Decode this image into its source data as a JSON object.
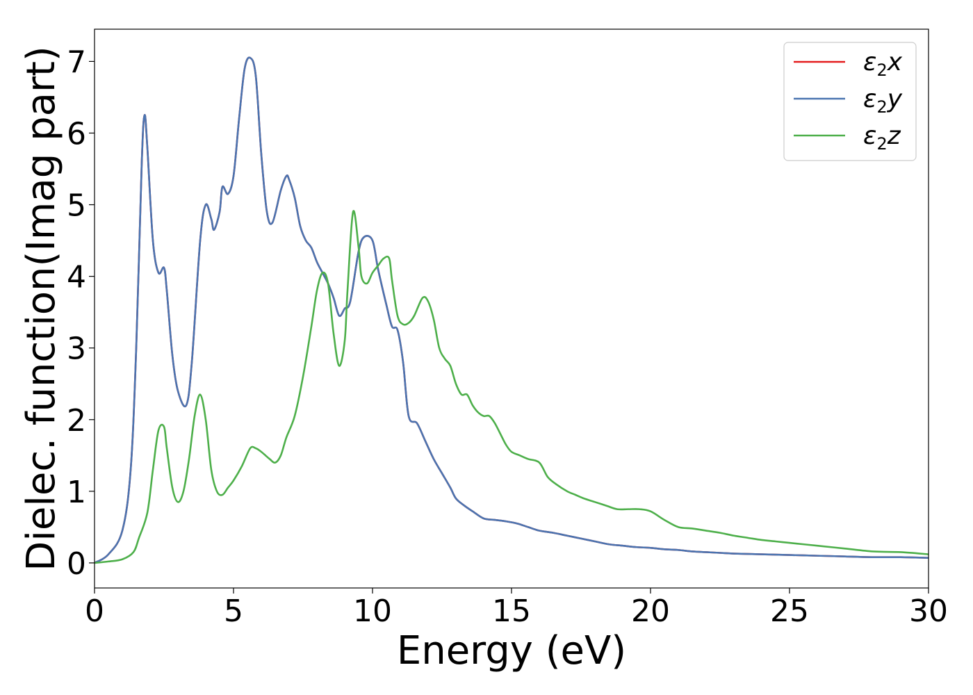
{
  "chart_data": {
    "type": "line",
    "xlabel": "Energy (eV)",
    "ylabel": "Dielec. function(Imag part)",
    "xlim": [
      0,
      30
    ],
    "ylim": [
      -0.35,
      7.45
    ],
    "xticks": [
      "0",
      "5",
      "10",
      "15",
      "20",
      "25",
      "30"
    ],
    "yticks": [
      "0",
      "1",
      "2",
      "3",
      "4",
      "5",
      "6",
      "7"
    ],
    "legend_position": "top-right",
    "grid": false,
    "series": [
      {
        "name": "ε₂x",
        "legend_base": "ε",
        "legend_sub": "2",
        "legend_tail": "x",
        "color": "#e41a1c",
        "x": [
          0,
          0.5,
          1.0,
          1.3,
          1.5,
          1.7,
          1.8,
          1.9,
          2.1,
          2.3,
          2.5,
          2.6,
          2.8,
          3.0,
          3.3,
          3.5,
          3.8,
          4.0,
          4.2,
          4.3,
          4.5,
          4.6,
          4.8,
          5.0,
          5.2,
          5.4,
          5.6,
          5.8,
          6.0,
          6.2,
          6.4,
          6.7,
          6.9,
          7.0,
          7.2,
          7.4,
          7.6,
          7.8,
          8.0,
          8.2,
          8.4,
          8.6,
          8.8,
          9.0,
          9.2,
          9.5,
          9.7,
          10.0,
          10.2,
          10.5,
          10.7,
          10.9,
          11.1,
          11.3,
          11.6,
          11.9,
          12.2,
          12.5,
          12.8,
          13.0,
          13.3,
          13.6,
          14.0,
          14.4,
          14.8,
          15.2,
          15.6,
          16.0,
          16.5,
          17.0,
          17.5,
          18.0,
          18.5,
          19.0,
          19.5,
          20.0,
          20.5,
          21.0,
          21.5,
          22.0,
          22.5,
          23.0,
          24.0,
          25.0,
          26.0,
          27.0,
          28.0,
          29.0,
          30.0
        ],
        "y": [
          0.0,
          0.12,
          0.45,
          1.3,
          3.0,
          5.6,
          6.25,
          5.8,
          4.5,
          4.05,
          4.12,
          3.8,
          2.9,
          2.4,
          2.2,
          2.8,
          4.5,
          5.0,
          4.8,
          4.65,
          4.9,
          5.25,
          5.15,
          5.4,
          6.2,
          6.9,
          7.05,
          6.8,
          5.7,
          4.9,
          4.75,
          5.2,
          5.4,
          5.35,
          5.1,
          4.7,
          4.5,
          4.4,
          4.2,
          4.05,
          3.9,
          3.7,
          3.45,
          3.55,
          3.65,
          4.35,
          4.55,
          4.5,
          4.1,
          3.6,
          3.3,
          3.25,
          2.8,
          2.05,
          1.95,
          1.7,
          1.45,
          1.25,
          1.05,
          0.9,
          0.8,
          0.72,
          0.62,
          0.6,
          0.58,
          0.55,
          0.5,
          0.45,
          0.42,
          0.38,
          0.34,
          0.3,
          0.26,
          0.24,
          0.22,
          0.21,
          0.19,
          0.18,
          0.16,
          0.15,
          0.14,
          0.13,
          0.12,
          0.11,
          0.1,
          0.09,
          0.08,
          0.08,
          0.07
        ]
      },
      {
        "name": "ε₂y",
        "legend_base": "ε",
        "legend_sub": "2",
        "legend_tail": "y",
        "color": "#4a74b0",
        "x": [
          0,
          0.5,
          1.0,
          1.3,
          1.5,
          1.7,
          1.8,
          1.9,
          2.1,
          2.3,
          2.5,
          2.6,
          2.8,
          3.0,
          3.3,
          3.5,
          3.8,
          4.0,
          4.2,
          4.3,
          4.5,
          4.6,
          4.8,
          5.0,
          5.2,
          5.4,
          5.6,
          5.8,
          6.0,
          6.2,
          6.4,
          6.7,
          6.9,
          7.0,
          7.2,
          7.4,
          7.6,
          7.8,
          8.0,
          8.2,
          8.4,
          8.6,
          8.8,
          9.0,
          9.2,
          9.5,
          9.7,
          10.0,
          10.2,
          10.5,
          10.7,
          10.9,
          11.1,
          11.3,
          11.6,
          11.9,
          12.2,
          12.5,
          12.8,
          13.0,
          13.3,
          13.6,
          14.0,
          14.4,
          14.8,
          15.2,
          15.6,
          16.0,
          16.5,
          17.0,
          17.5,
          18.0,
          18.5,
          19.0,
          19.5,
          20.0,
          20.5,
          21.0,
          21.5,
          22.0,
          22.5,
          23.0,
          24.0,
          25.0,
          26.0,
          27.0,
          28.0,
          29.0,
          30.0
        ],
        "y": [
          0.0,
          0.12,
          0.45,
          1.3,
          3.0,
          5.6,
          6.25,
          5.8,
          4.5,
          4.05,
          4.12,
          3.8,
          2.9,
          2.4,
          2.2,
          2.8,
          4.5,
          5.0,
          4.8,
          4.65,
          4.9,
          5.25,
          5.15,
          5.4,
          6.2,
          6.9,
          7.05,
          6.8,
          5.7,
          4.9,
          4.75,
          5.2,
          5.4,
          5.35,
          5.1,
          4.7,
          4.5,
          4.4,
          4.2,
          4.05,
          3.9,
          3.7,
          3.45,
          3.55,
          3.65,
          4.35,
          4.55,
          4.5,
          4.1,
          3.6,
          3.3,
          3.25,
          2.8,
          2.05,
          1.95,
          1.7,
          1.45,
          1.25,
          1.05,
          0.9,
          0.8,
          0.72,
          0.62,
          0.6,
          0.58,
          0.55,
          0.5,
          0.45,
          0.42,
          0.38,
          0.34,
          0.3,
          0.26,
          0.24,
          0.22,
          0.21,
          0.19,
          0.18,
          0.16,
          0.15,
          0.14,
          0.13,
          0.12,
          0.11,
          0.1,
          0.09,
          0.08,
          0.08,
          0.07
        ]
      },
      {
        "name": "ε₂z",
        "legend_base": "ε",
        "legend_sub": "2",
        "legend_tail": "z",
        "color": "#4daf4a",
        "x": [
          0,
          0.5,
          1.0,
          1.4,
          1.6,
          1.9,
          2.1,
          2.3,
          2.5,
          2.6,
          2.8,
          3.0,
          3.2,
          3.4,
          3.6,
          3.8,
          4.0,
          4.2,
          4.4,
          4.6,
          4.8,
          5.0,
          5.3,
          5.6,
          5.8,
          6.0,
          6.3,
          6.5,
          6.7,
          6.9,
          7.2,
          7.5,
          7.8,
          8.0,
          8.2,
          8.4,
          8.6,
          8.8,
          9.0,
          9.1,
          9.3,
          9.5,
          9.6,
          9.8,
          10.0,
          10.2,
          10.4,
          10.6,
          10.7,
          10.9,
          11.1,
          11.3,
          11.5,
          11.8,
          12.0,
          12.2,
          12.4,
          12.6,
          12.8,
          13.0,
          13.2,
          13.4,
          13.6,
          13.8,
          14.0,
          14.2,
          14.4,
          14.6,
          14.8,
          15.0,
          15.3,
          15.6,
          16.0,
          16.3,
          16.6,
          17.0,
          17.3,
          17.6,
          18.0,
          18.4,
          18.8,
          19.2,
          19.6,
          20.0,
          20.5,
          21.0,
          21.5,
          22.0,
          22.5,
          23.0,
          23.5,
          24.0,
          24.5,
          25.0,
          25.5,
          26.0,
          27.0,
          28.0,
          29.0,
          30.0
        ],
        "y": [
          0.0,
          0.02,
          0.05,
          0.15,
          0.35,
          0.7,
          1.3,
          1.85,
          1.9,
          1.6,
          1.05,
          0.85,
          1.0,
          1.45,
          2.05,
          2.35,
          2.0,
          1.3,
          1.0,
          0.95,
          1.05,
          1.15,
          1.35,
          1.6,
          1.6,
          1.55,
          1.45,
          1.4,
          1.5,
          1.75,
          2.05,
          2.6,
          3.3,
          3.8,
          4.05,
          3.9,
          3.2,
          2.75,
          3.1,
          3.8,
          4.9,
          4.4,
          4.0,
          3.9,
          4.05,
          4.15,
          4.25,
          4.25,
          3.95,
          3.45,
          3.33,
          3.35,
          3.45,
          3.7,
          3.65,
          3.4,
          3.0,
          2.85,
          2.75,
          2.5,
          2.35,
          2.35,
          2.2,
          2.1,
          2.05,
          2.05,
          1.95,
          1.8,
          1.65,
          1.55,
          1.5,
          1.45,
          1.4,
          1.2,
          1.1,
          1.0,
          0.95,
          0.9,
          0.85,
          0.8,
          0.75,
          0.75,
          0.75,
          0.72,
          0.6,
          0.5,
          0.48,
          0.45,
          0.42,
          0.38,
          0.35,
          0.32,
          0.3,
          0.28,
          0.26,
          0.24,
          0.2,
          0.16,
          0.15,
          0.12
        ]
      }
    ]
  }
}
